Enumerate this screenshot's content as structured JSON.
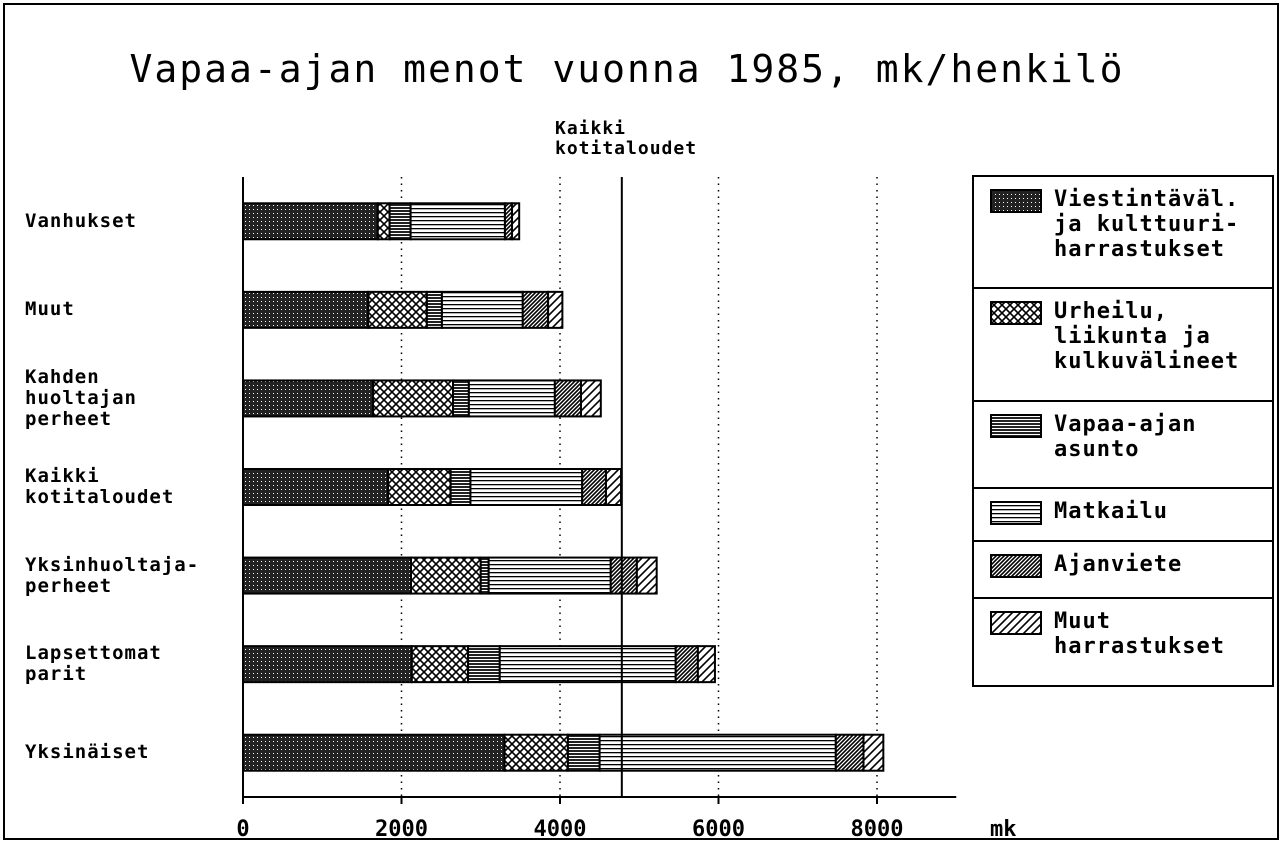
{
  "chart_data": {
    "type": "stacked-barh",
    "title": "Vapaa-ajan menot vuonna 1985, mk/henkilö",
    "x_label": "mk",
    "categories": [
      "Vanhukset",
      "Muut",
      "Kahden\nhuoltajan\nperheet",
      "Kaikki\nkotitaloudet",
      "Yksinhuoltaja-\nperheet",
      "Lapsettomat\nparit",
      "Yksinäiset"
    ],
    "series": [
      {
        "name": "Viestintäväl.\nja kulttuuri-\nharrastukset",
        "pattern": "p-dots",
        "values": [
          1700,
          1580,
          1640,
          1830,
          2120,
          2130,
          3300
        ]
      },
      {
        "name": "Urheilu,\nliikunta ja\nkulkuvälineet",
        "pattern": "p-cross",
        "values": [
          150,
          740,
          1010,
          790,
          880,
          710,
          800
        ]
      },
      {
        "name": "Vapaa-ajan\nasunto",
        "pattern": "p-hdense",
        "values": [
          265,
          190,
          200,
          250,
          100,
          400,
          400
        ]
      },
      {
        "name": "Matkailu",
        "pattern": "p-hlines",
        "values": [
          1190,
          1020,
          1085,
          1410,
          1540,
          2220,
          2980
        ]
      },
      {
        "name": "Ajanviete",
        "pattern": "p-ddense",
        "values": [
          90,
          320,
          330,
          300,
          330,
          280,
          350
        ]
      },
      {
        "name": "Muut\nharrastukset",
        "pattern": "p-diag",
        "values": [
          90,
          180,
          250,
          190,
          250,
          215,
          250
        ]
      }
    ],
    "reference_line": {
      "value": 4780,
      "label": "Kaikki\nkotitaloudet"
    },
    "xlim": [
      0,
      9000
    ],
    "xticks": [
      0,
      2000,
      4000,
      6000,
      8000
    ],
    "grid": true
  }
}
